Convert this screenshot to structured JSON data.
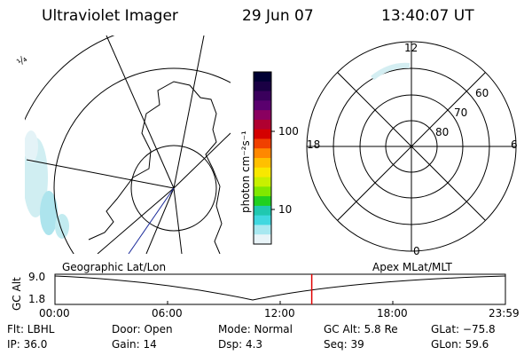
{
  "header": {
    "instrument": "Ultraviolet Imager",
    "date": "29 Jun 07",
    "time": "13:40:07 UT"
  },
  "left_map": {
    "mark": "¼"
  },
  "colorbar": {
    "unit_label": "photon cm⁻²s⁻¹",
    "ticks": [
      "100",
      "10"
    ],
    "colors": [
      "#000033",
      "#1a0044",
      "#3a005c",
      "#5a006e",
      "#8a0060",
      "#b00030",
      "#d40000",
      "#f04000",
      "#ff8800",
      "#ffc000",
      "#f8e800",
      "#c8f000",
      "#80e800",
      "#20d020",
      "#20c8b0",
      "#40d8e0",
      "#a8e8f0",
      "#e8f4f8"
    ]
  },
  "polar": {
    "mlt_labels": {
      "top": "12",
      "left": "18",
      "right": "6",
      "bottom": "0"
    },
    "lat_labels": [
      "60",
      "70",
      "80"
    ]
  },
  "timeline": {
    "left_title": "Geographic Lat/Lon",
    "right_title": "Apex MLat/MLT",
    "axis_label": "GC Alt",
    "y_top": "9.0",
    "y_bottom": "1.8",
    "x_ticks": [
      "00:00",
      "06:00",
      "12:00",
      "18:00",
      "23:59"
    ],
    "current_time_fraction": 0.57
  },
  "info": {
    "flt": "Flt: LBHL",
    "ip": "IP: 36.0",
    "door": "Door: Open",
    "gain": "Gain: 14",
    "mode": "Mode: Normal",
    "dsp": "Dsp:     4.3",
    "gcalt": "GC Alt: 5.8 Re",
    "seq": "Seq: 39",
    "glat": "GLat: −75.8",
    "glon": "GLon:   59.6"
  }
}
